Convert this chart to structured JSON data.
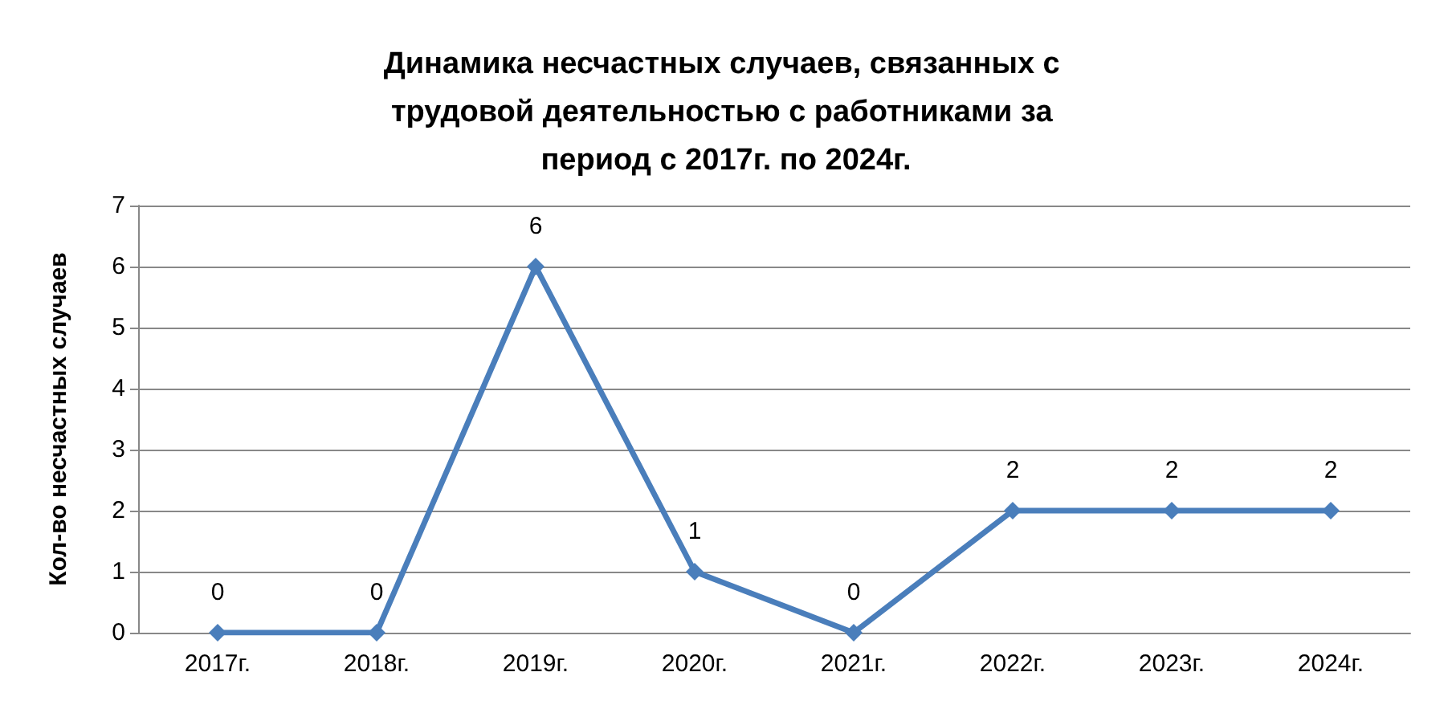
{
  "chart_data": {
    "type": "line",
    "title": "Динамика несчастных случаев, связанных с трудовой деятельностью с работниками за период с 2017г. по 2024г.",
    "ylabel": "Кол-во несчастных случаев",
    "categories": [
      "2017г.",
      "2018г.",
      "2019г.",
      "2020г.",
      "2021г.",
      "2022г.",
      "2023г.",
      "2024г."
    ],
    "values": [
      0,
      0,
      6,
      1,
      0,
      2,
      2,
      2
    ],
    "color": "#4a7ebb",
    "ylim": [
      0,
      7
    ],
    "yticks": [
      0,
      1,
      2,
      3,
      4,
      5,
      6,
      7
    ],
    "grid": "y",
    "marker": "diamond",
    "line_style": "solid",
    "data_labels": true
  }
}
